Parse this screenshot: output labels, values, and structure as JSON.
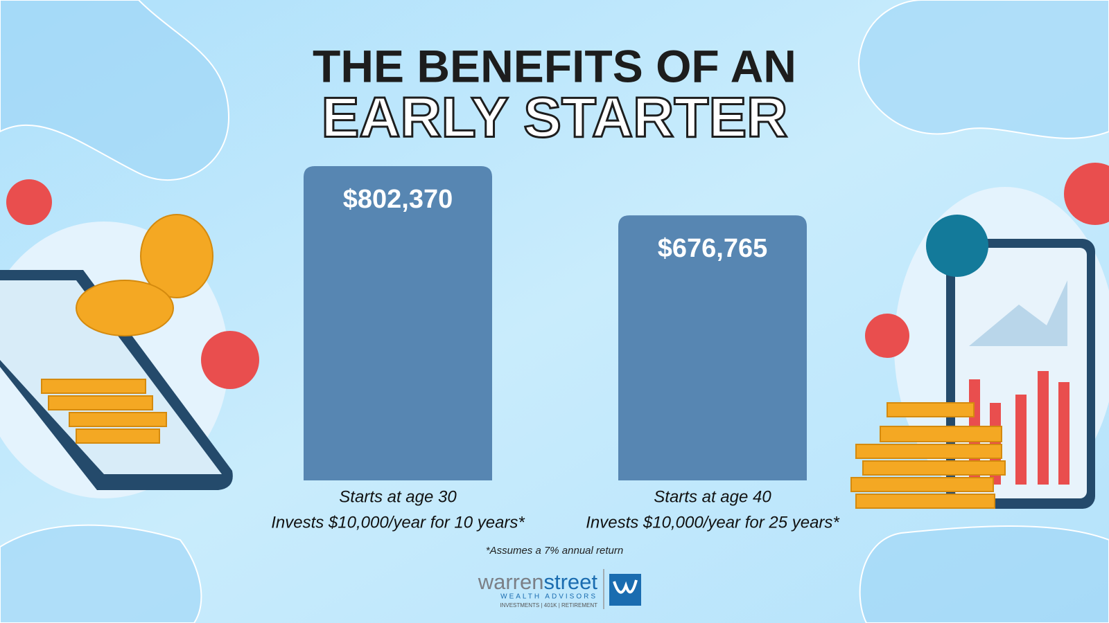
{
  "chart_data": {
    "type": "bar",
    "title": "THE BENEFITS OF AN",
    "subtitle": "EARLY STARTER",
    "categories": [
      "Starts at age 30",
      "Starts at age 40"
    ],
    "descriptions": [
      "Invests $10,000/year for 10 years*",
      "Invests $10,000/year for 25 years*"
    ],
    "values": [
      802370,
      676765
    ],
    "value_labels": [
      "$802,370",
      "$676,765"
    ],
    "color": "#5786b2",
    "footnote": "*Assumes a 7% annual return"
  },
  "logo": {
    "name_first": "warren",
    "name_second": "street",
    "tagline": "WEALTH ADVISORS",
    "services": "INVESTMENTS | 401K | RETIREMENT"
  }
}
